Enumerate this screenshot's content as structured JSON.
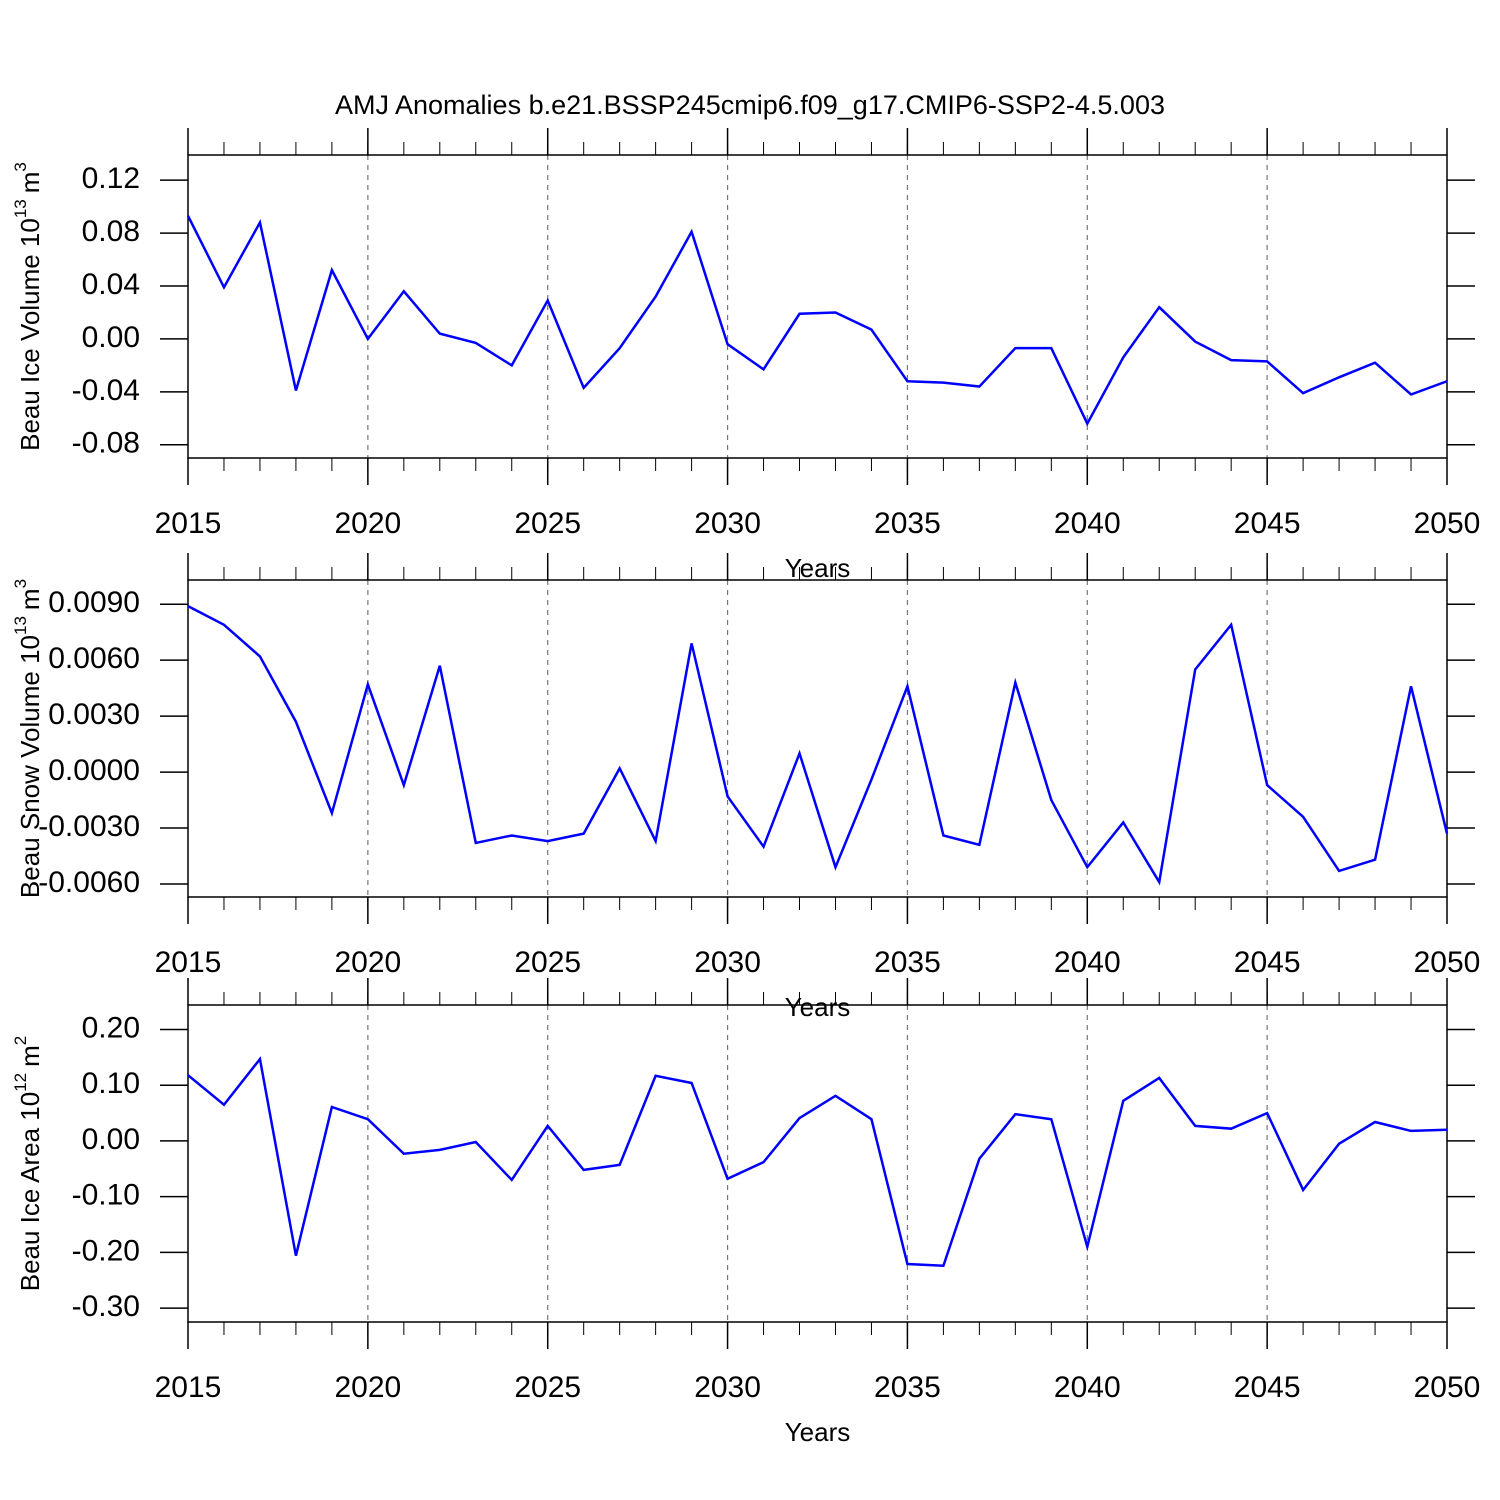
{
  "chart_data": [
    {
      "type": "line",
      "title": "AMJ Anomalies b.e21.BSSP245cmip6.f09_g17.CMIP6-SSP2-4.5.003",
      "xlabel": "Years",
      "ylabel": {
        "text": "Beau Ice Volume 10",
        "exponent": "13",
        "unit": "m",
        "unit_exponent": "3"
      },
      "x": [
        2015,
        2016,
        2017,
        2018,
        2019,
        2020,
        2021,
        2022,
        2023,
        2024,
        2025,
        2026,
        2027,
        2028,
        2029,
        2030,
        2031,
        2032,
        2033,
        2034,
        2035,
        2036,
        2037,
        2038,
        2039,
        2040,
        2041,
        2042,
        2043,
        2044,
        2045,
        2046,
        2047,
        2048,
        2049,
        2050
      ],
      "series": [
        {
          "name": "Beau Ice Volume",
          "color": "#0000ff",
          "values": [
            0.093,
            0.039,
            0.088,
            -0.039,
            0.052,
            0.0,
            0.036,
            0.004,
            -0.003,
            -0.02,
            0.029,
            -0.037,
            -0.007,
            0.032,
            0.081,
            -0.004,
            -0.023,
            0.019,
            0.02,
            0.007,
            -0.032,
            -0.033,
            -0.036,
            -0.007,
            -0.007,
            -0.064,
            -0.014,
            0.024,
            -0.002,
            -0.016,
            -0.017,
            -0.041,
            -0.029,
            -0.018,
            -0.042,
            -0.032
          ]
        }
      ],
      "xlim": [
        2015,
        2050
      ],
      "xticks": [
        2015,
        2020,
        2025,
        2030,
        2035,
        2040,
        2045,
        2050
      ],
      "ylim": [
        -0.09,
        0.139
      ],
      "yticks": [
        {
          "value": 0.12,
          "label": "0.12"
        },
        {
          "value": 0.08,
          "label": "0.08"
        },
        {
          "value": 0.04,
          "label": "0.04"
        },
        {
          "value": 0,
          "label": "0.00"
        },
        {
          "value": -0.04,
          "label": "-0.04"
        },
        {
          "value": -0.08,
          "label": "-0.08"
        }
      ],
      "grid": "x"
    },
    {
      "type": "line",
      "xlabel": "Years",
      "ylabel": {
        "text": "Beau Snow Volume 10",
        "exponent": "13",
        "unit": "m",
        "unit_exponent": "3"
      },
      "x": [
        2015,
        2016,
        2017,
        2018,
        2019,
        2020,
        2021,
        2022,
        2023,
        2024,
        2025,
        2026,
        2027,
        2028,
        2029,
        2030,
        2031,
        2032,
        2033,
        2034,
        2035,
        2036,
        2037,
        2038,
        2039,
        2040,
        2041,
        2042,
        2043,
        2044,
        2045,
        2046,
        2047,
        2048,
        2049,
        2050
      ],
      "series": [
        {
          "name": "Beau Snow Volume",
          "color": "#0000ff",
          "values": [
            0.0089,
            0.0079,
            0.0062,
            0.0027,
            -0.0022,
            0.0047,
            -0.0007,
            0.0057,
            -0.0038,
            -0.0034,
            -0.0037,
            -0.0033,
            0.0002,
            -0.0037,
            0.0069,
            -0.0013,
            -0.004,
            0.001,
            -0.0051,
            -0.0004,
            0.0046,
            -0.0034,
            -0.0039,
            0.0048,
            -0.0015,
            -0.0051,
            -0.0027,
            -0.0059,
            0.0055,
            0.0079,
            -0.0007,
            -0.0024,
            -0.0053,
            -0.0047,
            0.0046,
            -0.0033
          ]
        }
      ],
      "xlim": [
        2015,
        2050
      ],
      "xticks": [
        2015,
        2020,
        2025,
        2030,
        2035,
        2040,
        2045,
        2050
      ],
      "ylim": [
        -0.0067,
        0.0103
      ],
      "yticks": [
        {
          "value": 0.009,
          "label": "0.0090"
        },
        {
          "value": 0.006,
          "label": "0.0060"
        },
        {
          "value": 0.003,
          "label": "0.0030"
        },
        {
          "value": 0,
          "label": "0.0000"
        },
        {
          "value": -0.003,
          "label": "-0.0030"
        },
        {
          "value": -0.006,
          "label": "-0.0060"
        }
      ],
      "grid": "x"
    },
    {
      "type": "line",
      "xlabel": "Years",
      "ylabel": {
        "text": "Beau Ice Area 10",
        "exponent": "12",
        "unit": "m",
        "unit_exponent": "2"
      },
      "x": [
        2015,
        2016,
        2017,
        2018,
        2019,
        2020,
        2021,
        2022,
        2023,
        2024,
        2025,
        2026,
        2027,
        2028,
        2029,
        2030,
        2031,
        2032,
        2033,
        2034,
        2035,
        2036,
        2037,
        2038,
        2039,
        2040,
        2041,
        2042,
        2043,
        2044,
        2045,
        2046,
        2047,
        2048,
        2049,
        2050
      ],
      "series": [
        {
          "name": "Beau Ice Area",
          "color": "#0000ff",
          "values": [
            0.118,
            0.065,
            0.147,
            -0.206,
            0.061,
            0.039,
            -0.023,
            -0.016,
            -0.002,
            -0.07,
            0.027,
            -0.052,
            -0.043,
            0.117,
            0.104,
            -0.068,
            -0.038,
            0.041,
            0.081,
            0.039,
            -0.221,
            -0.224,
            -0.032,
            0.048,
            0.039,
            -0.19,
            0.072,
            0.113,
            0.027,
            0.022,
            0.05,
            -0.088,
            -0.005,
            0.034,
            0.018,
            0.02
          ]
        }
      ],
      "xlim": [
        2015,
        2050
      ],
      "xticks": [
        2015,
        2020,
        2025,
        2030,
        2035,
        2040,
        2045,
        2050
      ],
      "ylim": [
        -0.325,
        0.244
      ],
      "yticks": [
        {
          "value": 0.2,
          "label": "0.20"
        },
        {
          "value": 0.1,
          "label": "0.10"
        },
        {
          "value": 0,
          "label": "0.00"
        },
        {
          "value": -0.1,
          "label": "-0.10"
        },
        {
          "value": -0.2,
          "label": "-0.20"
        },
        {
          "value": -0.3,
          "label": "-0.30"
        }
      ],
      "grid": "x"
    }
  ]
}
